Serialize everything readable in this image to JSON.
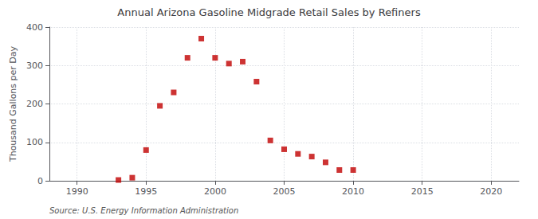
{
  "chart_data": {
    "type": "scatter",
    "title": "Annual Arizona Gasoline Midgrade Retail Sales by Refiners",
    "ylabel": "Thousand Gallons per Day",
    "annotation": "Source: U.S. Energy Information Administration",
    "x": [
      1993,
      1994,
      1995,
      1996,
      1997,
      1998,
      1999,
      2000,
      2001,
      2002,
      2003,
      2004,
      2005,
      2006,
      2007,
      2008,
      2009,
      2010
    ],
    "values": [
      2,
      8,
      80,
      195,
      230,
      320,
      370,
      320,
      305,
      310,
      258,
      105,
      82,
      70,
      63,
      48,
      28,
      28
    ],
    "color": "#c00000",
    "marker": "square",
    "xlim": [
      1988,
      2022
    ],
    "xticks": [
      1990,
      1995,
      2000,
      2005,
      2010,
      2015,
      2020
    ],
    "ylim": [
      0,
      400
    ],
    "yticks": [
      0,
      100,
      200,
      300,
      400
    ],
    "grid": true
  }
}
